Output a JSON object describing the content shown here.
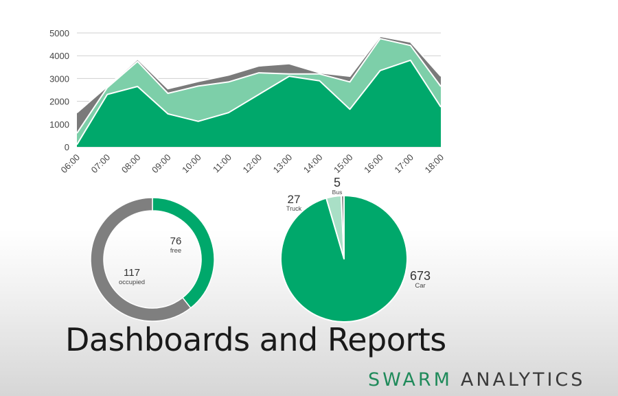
{
  "chart_data": [
    {
      "type": "area",
      "categories": [
        "06:00",
        "07:00",
        "08:00",
        "09:00",
        "10:00",
        "11:00",
        "12:00",
        "13:00",
        "14:00",
        "15:00",
        "16:00",
        "17:00",
        "18:00"
      ],
      "ylim": [
        0,
        5000
      ],
      "yticks": [
        0,
        1000,
        2000,
        3000,
        4000,
        5000
      ],
      "grid": true,
      "stacked": true,
      "series": [
        {
          "values": [
            100,
            2300,
            2650,
            1450,
            1120,
            1500,
            2300,
            3100,
            2900,
            1650,
            3350,
            3800,
            1750
          ],
          "color": "#00a86b"
        },
        {
          "values": [
            500,
            300,
            1100,
            900,
            1550,
            1350,
            950,
            100,
            300,
            1200,
            1400,
            650,
            900
          ],
          "color": "#7dcfa9"
        },
        {
          "values": [
            900,
            50,
            100,
            200,
            200,
            300,
            300,
            450,
            50,
            250,
            100,
            150,
            450
          ],
          "color": "#7a7a7a"
        }
      ]
    },
    {
      "type": "pie",
      "variant": "donut",
      "slices": [
        {
          "label": "free",
          "value": 76,
          "color": "#00a86b"
        },
        {
          "label": "occupied",
          "value": 117,
          "color": "#7f7f7f"
        }
      ]
    },
    {
      "type": "pie",
      "slices": [
        {
          "label": "Car",
          "value": 673,
          "color": "#00a86b"
        },
        {
          "label": "Truck",
          "value": 27,
          "color": "#a9dfc6"
        },
        {
          "label": "Bus",
          "value": 5,
          "color": "#8a8a8a"
        }
      ]
    }
  ],
  "headline": "Dashboards and Reports",
  "brand": {
    "part1": "SWARM",
    "part2": "ANALYTICS"
  }
}
